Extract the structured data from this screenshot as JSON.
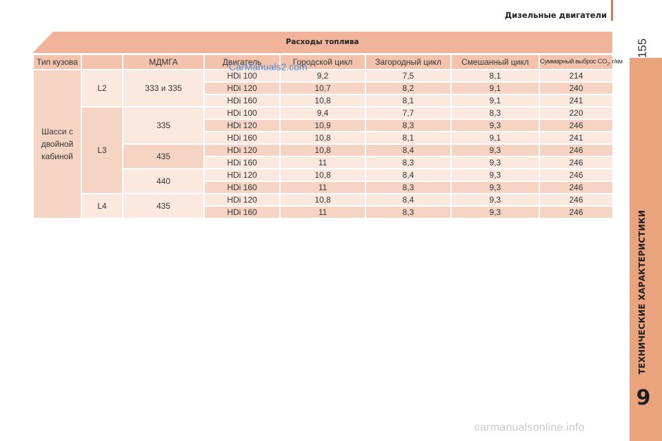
{
  "header": {
    "running_title": "Дизельные двигатели",
    "page_number": "155"
  },
  "side_tab": {
    "label": "ТЕХНИЧЕСКИЕ ХАРАКТЕРИСТИКИ",
    "chapter": "9"
  },
  "table": {
    "title": "Расходы топлива",
    "columns": [
      "Тип кузова",
      "МДМГА",
      "Двигатель",
      "Городской цикл",
      "Загородный цикл",
      "Смешанный цикл"
    ],
    "co2_column": {
      "prefix": "Суммарный выброс CO",
      "sub": "2",
      "suffix": ", г/км"
    },
    "body_type": "Шасси с двойной кабиной",
    "groups": [
      {
        "length": "L2",
        "mass": "333 и 335",
        "rows": [
          [
            "HDi 100",
            "9,2",
            "7,5",
            "8,1",
            "214"
          ],
          [
            "HDi 120",
            "10,7",
            "8,2",
            "9,1",
            "240"
          ],
          [
            "HDi 160",
            "10,8",
            "8,1",
            "9,1",
            "241"
          ]
        ]
      },
      {
        "length": "L3",
        "mass": "335",
        "rows": [
          [
            "HDi 100",
            "9,4",
            "7,7",
            "8,3",
            "220"
          ],
          [
            "HDi 120",
            "10,9",
            "8,3",
            "9,3",
            "246"
          ],
          [
            "HDi 160",
            "10,8",
            "8,1",
            "9,1",
            "241"
          ]
        ]
      },
      {
        "length": "L3",
        "mass": "435",
        "rows": [
          [
            "HDi 120",
            "10,8",
            "8,4",
            "9,3",
            "246"
          ],
          [
            "HDi 160",
            "11",
            "8,3",
            "9,3",
            "246"
          ]
        ]
      },
      {
        "length": "L3",
        "mass": "440",
        "rows": [
          [
            "HDi 120",
            "10,8",
            "8,4",
            "9,3",
            "246"
          ],
          [
            "HDi 160",
            "11",
            "8,3",
            "9,3",
            "246"
          ]
        ]
      },
      {
        "length": "L4",
        "mass": "435",
        "rows": [
          [
            "HDi 120",
            "10,8",
            "8,4",
            "9,3",
            "246"
          ],
          [
            "HDi 160",
            "11",
            "8,3",
            "9,3",
            "246"
          ]
        ]
      }
    ]
  },
  "watermarks": {
    "top": "CarManuals2.com",
    "bottom": "carmanualsonline.info"
  },
  "colors": {
    "accent": "#e2734e",
    "side_tab": "#e9a47d",
    "title_band": "#f0b49b",
    "header_row": "#f3c3ae",
    "row_dark": "#f5d4c4",
    "row_light": "#fbe9e0"
  }
}
